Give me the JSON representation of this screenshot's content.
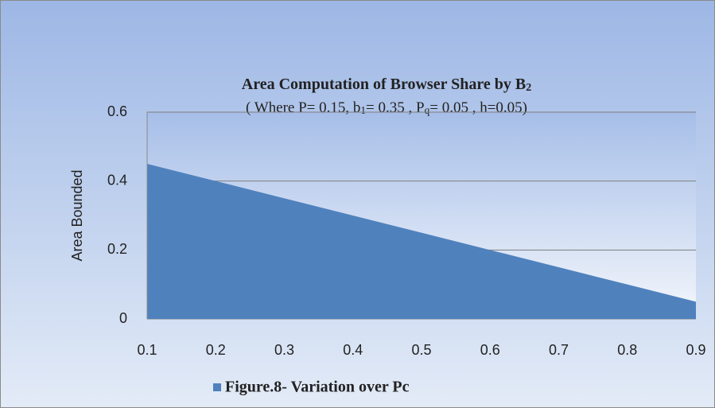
{
  "chart_data": {
    "type": "area",
    "title": [
      {
        "text": "Area Computation of  Browser Share by B"
      },
      {
        "sub": "2"
      }
    ],
    "subtitle": [
      {
        "text": "( Where P= 0.15,  b"
      },
      {
        "sub": "1"
      },
      {
        "text": "= 0.35 , P"
      },
      {
        "sub": "q"
      },
      {
        "text": "= 0.05 , h=0.05)"
      }
    ],
    "ylabel": "Area Bounded",
    "x": [
      0.1,
      0.2,
      0.3,
      0.4,
      0.5,
      0.6,
      0.7,
      0.8,
      0.9
    ],
    "series": [
      {
        "name": "Figure.8- Variation over Pc",
        "color": "#4f81bd",
        "values": [
          0.45,
          0.4,
          0.35,
          0.3,
          0.25,
          0.2,
          0.15,
          0.1,
          0.05
        ]
      }
    ],
    "xlim": [
      0.1,
      0.9
    ],
    "xticks": [
      0.1,
      0.2,
      0.3,
      0.4,
      0.5,
      0.6,
      0.7,
      0.8,
      0.9
    ],
    "ylim": [
      0,
      0.6
    ],
    "yticks": [
      0,
      0.2,
      0.4,
      0.6
    ],
    "grid": true,
    "legend": "bottom"
  }
}
